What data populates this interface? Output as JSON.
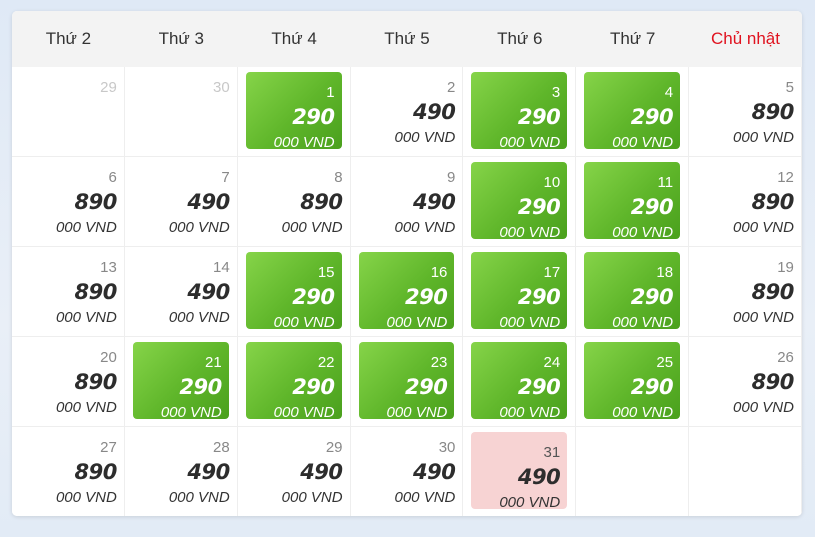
{
  "weekdays": [
    {
      "label": "Thứ 2",
      "sunday": false
    },
    {
      "label": "Thứ 3",
      "sunday": false
    },
    {
      "label": "Thứ 4",
      "sunday": false
    },
    {
      "label": "Thứ 5",
      "sunday": false
    },
    {
      "label": "Thứ 6",
      "sunday": false
    },
    {
      "label": "Thứ 7",
      "sunday": false
    },
    {
      "label": "Chủ nhật",
      "sunday": true
    }
  ],
  "unit_label": "000 VND",
  "colors": {
    "cheap": "#5fb62a",
    "soldout": "#f7d3d3",
    "sunday_header": "#e0121f"
  },
  "cells": [
    {
      "day": "29",
      "other_month": true
    },
    {
      "day": "30",
      "other_month": true
    },
    {
      "day": "1",
      "price": "290",
      "style": "cheap"
    },
    {
      "day": "2",
      "price": "490"
    },
    {
      "day": "3",
      "price": "290",
      "style": "cheap"
    },
    {
      "day": "4",
      "price": "290",
      "style": "cheap"
    },
    {
      "day": "5",
      "price": "890"
    },
    {
      "day": "6",
      "price": "890"
    },
    {
      "day": "7",
      "price": "490"
    },
    {
      "day": "8",
      "price": "890"
    },
    {
      "day": "9",
      "price": "490"
    },
    {
      "day": "10",
      "price": "290",
      "style": "cheap"
    },
    {
      "day": "11",
      "price": "290",
      "style": "cheap"
    },
    {
      "day": "12",
      "price": "890"
    },
    {
      "day": "13",
      "price": "890"
    },
    {
      "day": "14",
      "price": "490"
    },
    {
      "day": "15",
      "price": "290",
      "style": "cheap"
    },
    {
      "day": "16",
      "price": "290",
      "style": "cheap"
    },
    {
      "day": "17",
      "price": "290",
      "style": "cheap"
    },
    {
      "day": "18",
      "price": "290",
      "style": "cheap"
    },
    {
      "day": "19",
      "price": "890"
    },
    {
      "day": "20",
      "price": "890"
    },
    {
      "day": "21",
      "price": "290",
      "style": "cheap"
    },
    {
      "day": "22",
      "price": "290",
      "style": "cheap"
    },
    {
      "day": "23",
      "price": "290",
      "style": "cheap"
    },
    {
      "day": "24",
      "price": "290",
      "style": "cheap"
    },
    {
      "day": "25",
      "price": "290",
      "style": "cheap"
    },
    {
      "day": "26",
      "price": "890"
    },
    {
      "day": "27",
      "price": "890"
    },
    {
      "day": "28",
      "price": "490"
    },
    {
      "day": "29",
      "price": "490"
    },
    {
      "day": "30",
      "price": "490"
    },
    {
      "day": "31",
      "price": "490",
      "style": "soldout"
    },
    {
      "empty": true
    },
    {
      "empty": true
    }
  ]
}
